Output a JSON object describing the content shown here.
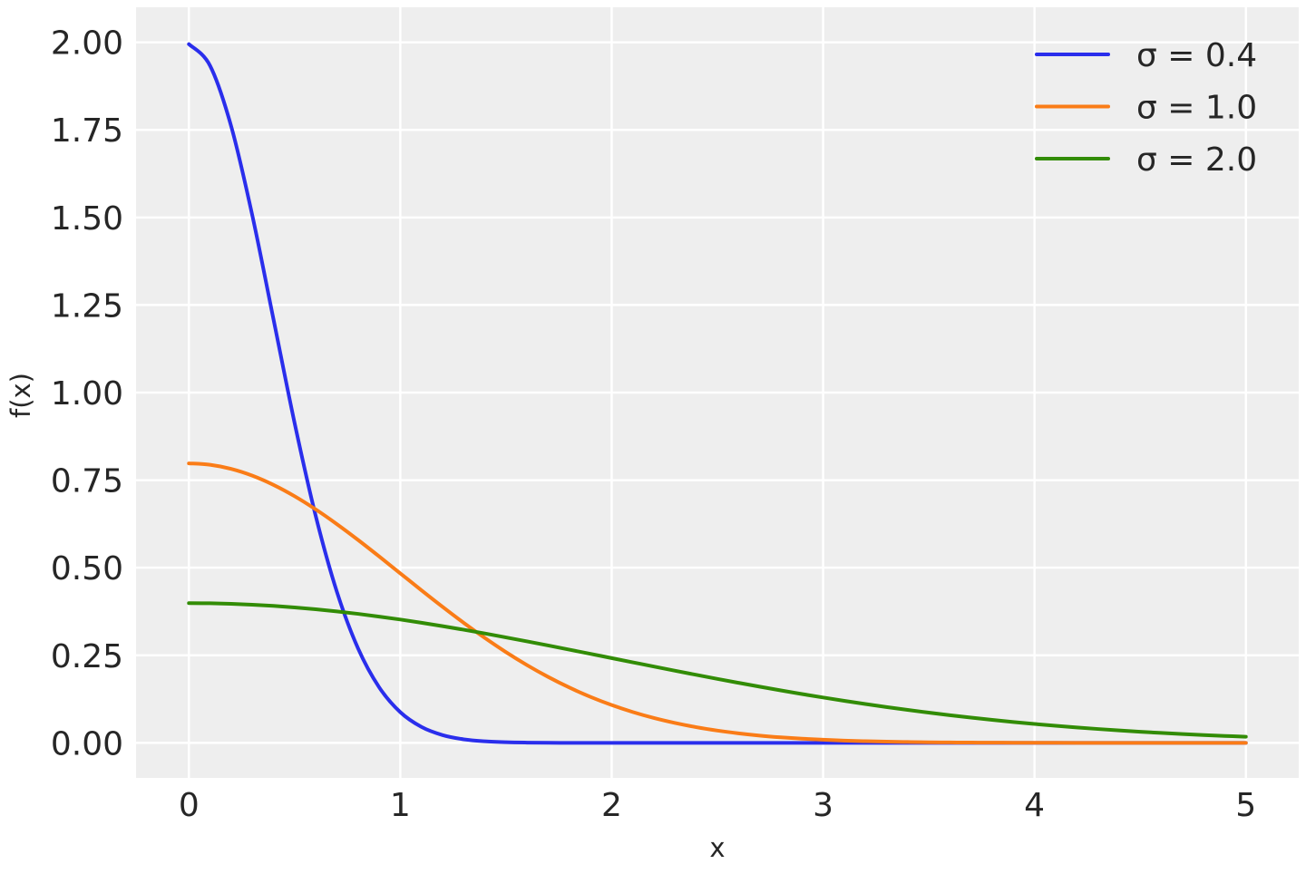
{
  "chart_data": {
    "type": "line",
    "title": "",
    "xlabel": "x",
    "ylabel": "f(x)",
    "xlim": [
      -0.25,
      5.25
    ],
    "ylim": [
      -0.1,
      2.1
    ],
    "xticks": [
      0,
      1,
      2,
      3,
      4,
      5
    ],
    "xtick_labels": [
      "0",
      "1",
      "2",
      "3",
      "4",
      "5"
    ],
    "yticks": [
      0,
      0.25,
      0.5,
      0.75,
      1.0,
      1.25,
      1.5,
      1.75,
      2.0
    ],
    "ytick_labels": [
      "0.00",
      "0.25",
      "0.50",
      "0.75",
      "1.00",
      "1.25",
      "1.50",
      "1.75",
      "2.00"
    ],
    "grid": true,
    "background": "#eeeeee",
    "legend_position": "top-right",
    "x": [
      0,
      0.1,
      0.2,
      0.3,
      0.4,
      0.5,
      0.6,
      0.7,
      0.8,
      0.9,
      1.0,
      1.1,
      1.2,
      1.3,
      1.4,
      1.5,
      1.6,
      1.7,
      1.8,
      1.9,
      2.0,
      2.1,
      2.2,
      2.3,
      2.4,
      2.5,
      2.6,
      2.7,
      2.8,
      2.9,
      3.0,
      3.1,
      3.2,
      3.3,
      3.4,
      3.5,
      3.6,
      3.7,
      3.8,
      3.9,
      4.0,
      4.1,
      4.2,
      4.3,
      4.4,
      4.5,
      4.6,
      4.7,
      4.8,
      4.9,
      5.0
    ],
    "series": [
      {
        "name": "σ = 0.4",
        "color": "#2a2eec",
        "values": [
          1.9947,
          1.9333,
          1.7603,
          1.5057,
          1.2098,
          0.9132,
          0.6476,
          0.4314,
          0.27,
          0.1587,
          0.0876,
          0.0455,
          0.0222,
          0.0101,
          0.0044,
          0.0018,
          0.0007,
          0.0002,
          0.0001,
          0,
          0,
          0,
          0,
          0,
          0,
          0,
          0,
          0,
          0,
          0,
          0,
          0,
          0,
          0,
          0,
          0,
          0,
          0,
          0,
          0,
          0,
          0,
          0,
          0,
          0,
          0,
          0,
          0,
          0,
          0,
          0
        ]
      },
      {
        "name": "σ = 1.0",
        "color": "#fa7c17",
        "values": [
          0.7979,
          0.7939,
          0.7821,
          0.7628,
          0.7365,
          0.7041,
          0.6664,
          0.6245,
          0.5794,
          0.5322,
          0.4839,
          0.4357,
          0.3884,
          0.3427,
          0.2995,
          0.259,
          0.2218,
          0.1881,
          0.1579,
          0.1312,
          0.108,
          0.088,
          0.0709,
          0.0567,
          0.0448,
          0.0351,
          0.0272,
          0.0208,
          0.0158,
          0.0119,
          0.0089,
          0.0065,
          0.0048,
          0.0034,
          0.0025,
          0.0017,
          0.0012,
          0.0008,
          0.0006,
          0.0004,
          0.0003,
          0.0002,
          0.0001,
          0.0001,
          0,
          0,
          0,
          0,
          0,
          0,
          0
        ]
      },
      {
        "name": "σ = 2.0",
        "color": "#328c06",
        "values": [
          0.3989,
          0.3984,
          0.397,
          0.3945,
          0.391,
          0.3867,
          0.3814,
          0.3752,
          0.3683,
          0.3605,
          0.3521,
          0.3429,
          0.3332,
          0.323,
          0.3123,
          0.3011,
          0.2897,
          0.278,
          0.2661,
          0.2541,
          0.242,
          0.2299,
          0.2178,
          0.2059,
          0.1942,
          0.1826,
          0.1714,
          0.1604,
          0.1497,
          0.1394,
          0.1295,
          0.12,
          0.1109,
          0.1023,
          0.0941,
          0.0863,
          0.079,
          0.0721,
          0.0656,
          0.0596,
          0.054,
          0.0488,
          0.044,
          0.0396,
          0.0355,
          0.0317,
          0.0283,
          0.0252,
          0.0224,
          0.0198,
          0.0175
        ]
      }
    ]
  }
}
